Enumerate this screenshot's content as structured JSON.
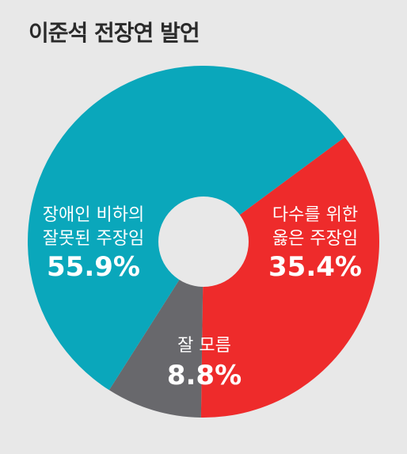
{
  "title": "이준석 전장연 발언",
  "chart_data": {
    "type": "pie",
    "categories": [
      "장애인 비하의 잘못된 주장임",
      "다수를 위한 옳은 주장임",
      "잘 모름"
    ],
    "series": [
      {
        "values": [
          55.9,
          35.4,
          8.8
        ]
      }
    ],
    "slices": [
      {
        "line1": "장애인 비하의",
        "line2": "잘못된 주장임",
        "value": 55.9,
        "pct_label": "55.9%",
        "color": "#0aa7bb"
      },
      {
        "line1": "다수를 위한",
        "line2": "옳은 주장임",
        "value": 35.4,
        "pct_label": "35.4%",
        "color": "#ee2b2b"
      },
      {
        "line1": "잘 모름",
        "line2": "",
        "value": 8.8,
        "pct_label": "8.8%",
        "color": "#68686c"
      }
    ],
    "donut": true,
    "legend": "none"
  }
}
